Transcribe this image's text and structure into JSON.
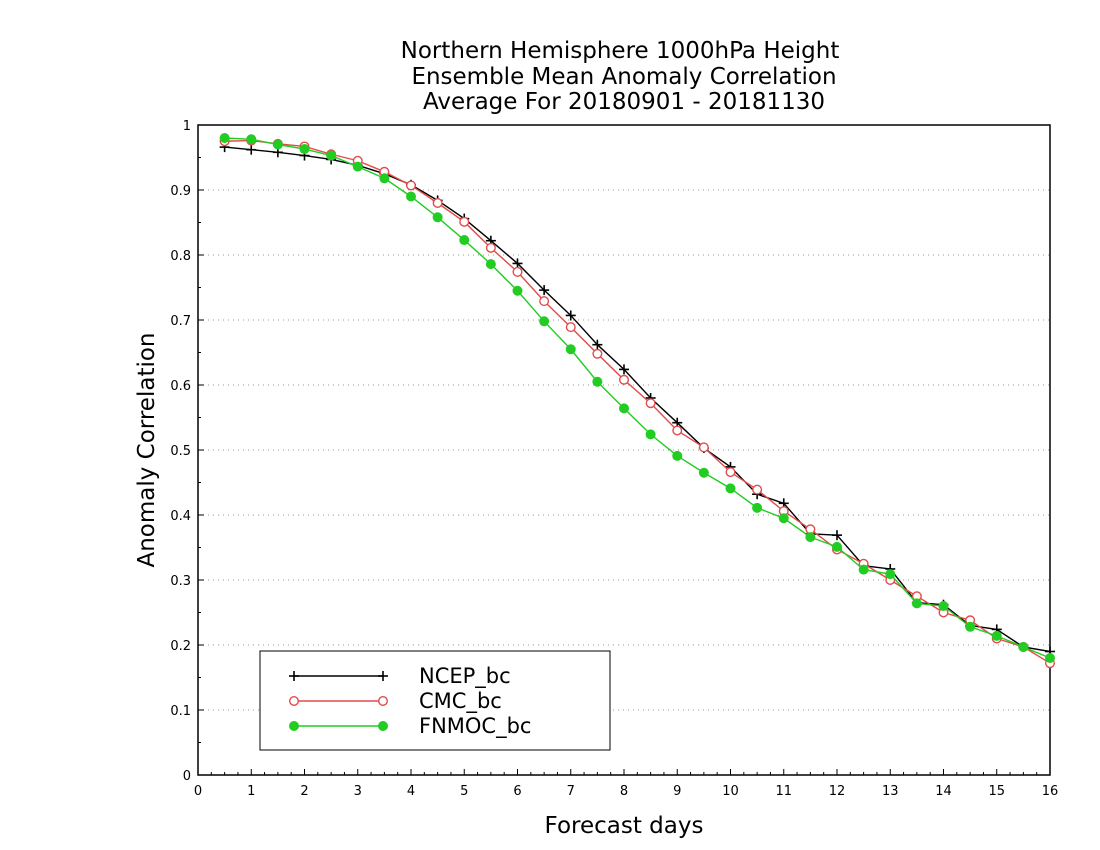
{
  "chart_data": {
    "type": "line",
    "title": [
      "Northern Hemisphere 1000hPa Height",
      "Ensemble Mean Anomaly Correlation",
      "Average For 20180901 - 20181130"
    ],
    "xlabel": "Forecast days",
    "ylabel": "Anomaly Correlation",
    "xlim": [
      0,
      16
    ],
    "ylim": [
      0,
      1
    ],
    "x_ticks": [
      "0",
      "1",
      "2",
      "3",
      "4",
      "5",
      "6",
      "7",
      "8",
      "9",
      "10",
      "11",
      "12",
      "13",
      "14",
      "15",
      "16"
    ],
    "y_ticks": [
      "0",
      "0.1",
      "0.2",
      "0.3",
      "0.4",
      "0.5",
      "0.6",
      "0.7",
      "0.8",
      "0.9",
      "1"
    ],
    "grid": true,
    "legend_position": "bottom-left",
    "x": [
      0.5,
      1,
      1.5,
      2,
      2.5,
      3,
      3.5,
      4,
      4.5,
      5,
      5.5,
      6,
      6.5,
      7,
      7.5,
      8,
      8.5,
      9,
      9.5,
      10,
      10.5,
      11,
      11.5,
      12,
      12.5,
      13,
      13.5,
      14,
      14.5,
      15,
      15.5,
      16
    ],
    "series": [
      {
        "name": "NCEP_bc",
        "color": "#000000",
        "marker": "plus",
        "values": [
          0.966,
          0.962,
          0.958,
          0.953,
          0.947,
          0.938,
          0.925,
          0.908,
          0.884,
          0.856,
          0.822,
          0.787,
          0.746,
          0.707,
          0.662,
          0.624,
          0.58,
          0.542,
          0.503,
          0.474,
          0.432,
          0.418,
          0.371,
          0.369,
          0.322,
          0.317,
          0.265,
          0.262,
          0.23,
          0.224,
          0.197,
          0.19
        ]
      },
      {
        "name": "CMC_bc",
        "color": "#e34a4a",
        "marker": "open-circle",
        "values": [
          0.975,
          0.976,
          0.971,
          0.967,
          0.955,
          0.945,
          0.928,
          0.907,
          0.88,
          0.851,
          0.811,
          0.774,
          0.729,
          0.689,
          0.648,
          0.608,
          0.572,
          0.53,
          0.504,
          0.466,
          0.439,
          0.406,
          0.378,
          0.347,
          0.325,
          0.3,
          0.275,
          0.25,
          0.238,
          0.21,
          0.197,
          0.172
        ]
      },
      {
        "name": "FNMOC_bc",
        "color": "#22cc22",
        "marker": "filled-circle",
        "values": [
          0.98,
          0.978,
          0.97,
          0.963,
          0.953,
          0.936,
          0.918,
          0.89,
          0.858,
          0.823,
          0.786,
          0.745,
          0.698,
          0.655,
          0.605,
          0.564,
          0.524,
          0.491,
          0.465,
          0.441,
          0.411,
          0.395,
          0.366,
          0.351,
          0.316,
          0.309,
          0.264,
          0.26,
          0.228,
          0.214,
          0.197,
          0.18
        ]
      }
    ]
  }
}
